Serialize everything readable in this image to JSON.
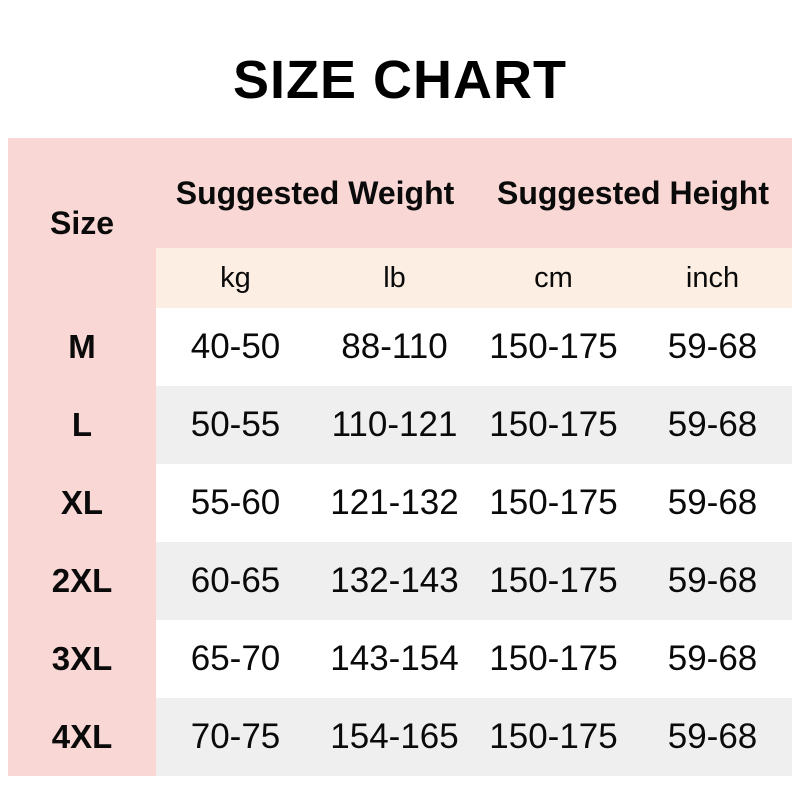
{
  "title": "SIZE CHART",
  "colors": {
    "panel_pink": "#f8d7d4",
    "unit_band_cream": "#fdeee4",
    "row_stripe_white": "#ffffff",
    "row_stripe_gray": "#efefef",
    "text": "#000000"
  },
  "table": {
    "size_header": "Size",
    "groups": [
      {
        "label": "Suggested Weight",
        "units": [
          "kg",
          "lb"
        ]
      },
      {
        "label": "Suggested Height",
        "units": [
          "cm",
          "inch"
        ]
      }
    ],
    "units": [
      "kg",
      "lb",
      "cm",
      "inch"
    ],
    "rows": [
      {
        "size": "M",
        "kg": "40-50",
        "lb": "88-110",
        "cm": "150-175",
        "inch": "59-68"
      },
      {
        "size": "L",
        "kg": "50-55",
        "lb": "110-121",
        "cm": "150-175",
        "inch": "59-68"
      },
      {
        "size": "XL",
        "kg": "55-60",
        "lb": "121-132",
        "cm": "150-175",
        "inch": "59-68"
      },
      {
        "size": "2XL",
        "kg": "60-65",
        "lb": "132-143",
        "cm": "150-175",
        "inch": "59-68"
      },
      {
        "size": "3XL",
        "kg": "65-70",
        "lb": "143-154",
        "cm": "150-175",
        "inch": "59-68"
      },
      {
        "size": "4XL",
        "kg": "70-75",
        "lb": "154-165",
        "cm": "150-175",
        "inch": "59-68"
      }
    ]
  },
  "chart_data": {
    "type": "table",
    "title": "SIZE CHART",
    "column_groups": [
      {
        "label": "Size",
        "span": 1
      },
      {
        "label": "Suggested Weight",
        "span": 2
      },
      {
        "label": "Suggested Height",
        "span": 2
      }
    ],
    "columns": [
      "Size",
      "kg",
      "lb",
      "cm",
      "inch"
    ],
    "rows": [
      [
        "M",
        "40-50",
        "88-110",
        "150-175",
        "59-68"
      ],
      [
        "L",
        "50-55",
        "110-121",
        "150-175",
        "59-68"
      ],
      [
        "XL",
        "55-60",
        "121-132",
        "150-175",
        "59-68"
      ],
      [
        "2XL",
        "60-65",
        "132-143",
        "150-175",
        "59-68"
      ],
      [
        "3XL",
        "65-70",
        "143-154",
        "150-175",
        "59-68"
      ],
      [
        "4XL",
        "70-75",
        "154-165",
        "150-175",
        "59-68"
      ]
    ]
  }
}
